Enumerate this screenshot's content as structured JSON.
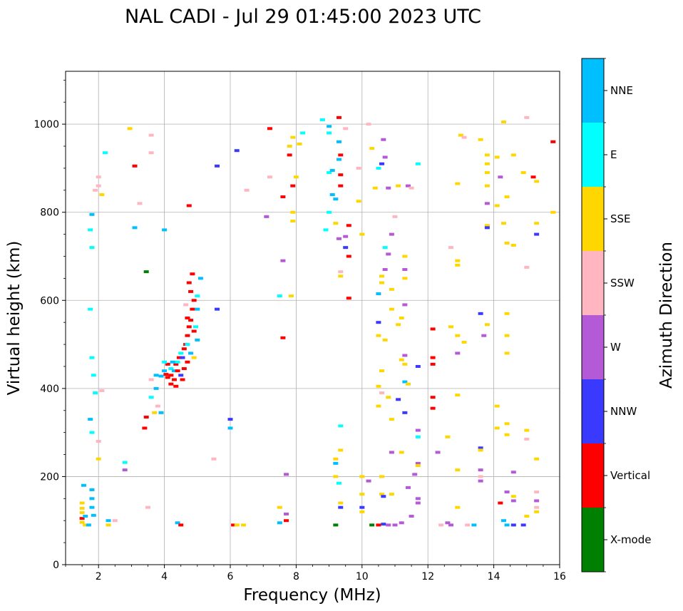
{
  "chart_data": {
    "type": "scatter",
    "title": "NAL CADI - Jul 29 01:45:00 2023 UTC",
    "xlabel": "Frequency (MHz)",
    "ylabel": "Virtual height (km)",
    "xlim": [
      1,
      16
    ],
    "ylim": [
      0,
      1120
    ],
    "xticks": [
      2,
      4,
      6,
      8,
      10,
      12,
      14,
      16
    ],
    "yticks": [
      0,
      200,
      400,
      600,
      800,
      1000
    ],
    "grid": true,
    "colorbar": {
      "label": "Azimuth Direction",
      "categories": [
        {
          "name": "X-mode",
          "color": "#008000"
        },
        {
          "name": "Vertical",
          "color": "#ff0000"
        },
        {
          "name": "NNW",
          "color": "#3a3aff"
        },
        {
          "name": "W",
          "color": "#b45ad6"
        },
        {
          "name": "SSW",
          "color": "#ffb6c1"
        },
        {
          "name": "SSE",
          "color": "#ffd700"
        },
        {
          "name": "E",
          "color": "#00ffff"
        },
        {
          "name": "NNE",
          "color": "#00bfff"
        }
      ]
    },
    "points": [
      [
        1.5,
        140,
        "SSE"
      ],
      [
        1.5,
        128,
        "SSE"
      ],
      [
        1.5,
        118,
        "SSE"
      ],
      [
        1.5,
        105,
        "Vertical"
      ],
      [
        1.5,
        96,
        "SSE"
      ],
      [
        1.55,
        180,
        "NNE"
      ],
      [
        1.6,
        110,
        "NNE"
      ],
      [
        1.8,
        170,
        "NNE"
      ],
      [
        1.8,
        150,
        "NNE"
      ],
      [
        1.8,
        130,
        "NNE"
      ],
      [
        1.85,
        112,
        "NNE"
      ],
      [
        1.6,
        90,
        "SSE"
      ],
      [
        1.7,
        90,
        "NNE"
      ],
      [
        1.75,
        580,
        "E"
      ],
      [
        1.8,
        720,
        "E"
      ],
      [
        1.75,
        760,
        "E"
      ],
      [
        1.8,
        795,
        "NNE"
      ],
      [
        1.9,
        850,
        "SSW"
      ],
      [
        2.0,
        880,
        "SSW"
      ],
      [
        2.0,
        860,
        "SSW"
      ],
      [
        2.1,
        840,
        "SSE"
      ],
      [
        2.2,
        935,
        "E"
      ],
      [
        1.8,
        470,
        "E"
      ],
      [
        1.85,
        430,
        "E"
      ],
      [
        1.9,
        390,
        "E"
      ],
      [
        1.75,
        330,
        "NNE"
      ],
      [
        1.8,
        300,
        "E"
      ],
      [
        2.0,
        280,
        "SSW"
      ],
      [
        2.0,
        240,
        "SSE"
      ],
      [
        2.1,
        395,
        "SSW"
      ],
      [
        2.3,
        100,
        "NNE"
      ],
      [
        2.3,
        90,
        "SSE"
      ],
      [
        2.5,
        100,
        "SSW"
      ],
      [
        2.8,
        215,
        "W"
      ],
      [
        2.8,
        232,
        "E"
      ],
      [
        2.95,
        990,
        "SSE"
      ],
      [
        3.1,
        905,
        "Vertical"
      ],
      [
        3.1,
        765,
        "NNE"
      ],
      [
        3.25,
        820,
        "SSW"
      ],
      [
        3.5,
        130,
        "SSW"
      ],
      [
        3.6,
        975,
        "SSW"
      ],
      [
        3.6,
        935,
        "SSW"
      ],
      [
        3.4,
        310,
        "Vertical"
      ],
      [
        3.45,
        335,
        "Vertical"
      ],
      [
        3.7,
        345,
        "SSE"
      ],
      [
        3.8,
        360,
        "SSW"
      ],
      [
        3.75,
        400,
        "NNE"
      ],
      [
        3.9,
        345,
        "NNE"
      ],
      [
        3.6,
        420,
        "SSW"
      ],
      [
        3.6,
        380,
        "E"
      ],
      [
        3.75,
        430,
        "NNE"
      ],
      [
        3.9,
        428,
        "NNE"
      ],
      [
        4.0,
        440,
        "NNE"
      ],
      [
        4.05,
        432,
        "Vertical"
      ],
      [
        4.1,
        425,
        "Vertical"
      ],
      [
        4.2,
        430,
        "Vertical"
      ],
      [
        4.2,
        445,
        "E"
      ],
      [
        4.3,
        440,
        "NNE"
      ],
      [
        4.35,
        455,
        "Vertical"
      ],
      [
        4.4,
        460,
        "E"
      ],
      [
        4.45,
        470,
        "Vertical"
      ],
      [
        4.5,
        480,
        "E"
      ],
      [
        4.55,
        470,
        "NNW"
      ],
      [
        4.6,
        490,
        "Vertical"
      ],
      [
        4.65,
        500,
        "Vertical"
      ],
      [
        4.7,
        520,
        "Vertical"
      ],
      [
        4.75,
        540,
        "Vertical"
      ],
      [
        4.8,
        555,
        "Vertical"
      ],
      [
        4.85,
        580,
        "Vertical"
      ],
      [
        4.9,
        600,
        "Vertical"
      ],
      [
        4.8,
        620,
        "Vertical"
      ],
      [
        4.75,
        640,
        "Vertical"
      ],
      [
        4.85,
        660,
        "Vertical"
      ],
      [
        5.0,
        610,
        "E"
      ],
      [
        5.0,
        580,
        "NNE"
      ],
      [
        4.95,
        540,
        "E"
      ],
      [
        5.0,
        510,
        "NNE"
      ],
      [
        4.3,
        420,
        "Vertical"
      ],
      [
        4.2,
        410,
        "Vertical"
      ],
      [
        4.35,
        405,
        "Vertical"
      ],
      [
        4.5,
        430,
        "NNW"
      ],
      [
        4.6,
        445,
        "Vertical"
      ],
      [
        4.55,
        420,
        "Vertical"
      ],
      [
        4.4,
        440,
        "Vertical"
      ],
      [
        4.25,
        460,
        "NNE"
      ],
      [
        4.1,
        455,
        "Vertical"
      ],
      [
        4.0,
        460,
        "E"
      ],
      [
        4.7,
        500,
        "E"
      ],
      [
        4.8,
        480,
        "NNE"
      ],
      [
        4.9,
        470,
        "SSE"
      ],
      [
        4.7,
        560,
        "Vertical"
      ],
      [
        4.65,
        590,
        "SSW"
      ],
      [
        4.9,
        530,
        "Vertical"
      ],
      [
        5.1,
        650,
        "NNE"
      ],
      [
        4.7,
        460,
        "Vertical"
      ],
      [
        4.75,
        815,
        "Vertical"
      ],
      [
        3.45,
        665,
        "X-mode"
      ],
      [
        4.0,
        760,
        "NNE"
      ],
      [
        4.4,
        95,
        "NNE"
      ],
      [
        4.5,
        90,
        "Vertical"
      ],
      [
        5.5,
        240,
        "SSW"
      ],
      [
        5.6,
        580,
        "NNW"
      ],
      [
        5.6,
        905,
        "NNW"
      ],
      [
        6.0,
        330,
        "NNW"
      ],
      [
        6.0,
        310,
        "NNE"
      ],
      [
        6.1,
        90,
        "Vertical"
      ],
      [
        6.2,
        90,
        "SSE"
      ],
      [
        6.4,
        90,
        "SSE"
      ],
      [
        6.2,
        940,
        "NNW"
      ],
      [
        6.5,
        850,
        "SSW"
      ],
      [
        7.1,
        790,
        "W"
      ],
      [
        7.2,
        880,
        "SSW"
      ],
      [
        7.2,
        990,
        "Vertical"
      ],
      [
        7.5,
        130,
        "SSE"
      ],
      [
        7.5,
        95,
        "NNE"
      ],
      [
        7.6,
        690,
        "W"
      ],
      [
        7.6,
        835,
        "Vertical"
      ],
      [
        7.7,
        115,
        "W"
      ],
      [
        7.7,
        100,
        "Vertical"
      ],
      [
        7.7,
        205,
        "W"
      ],
      [
        7.5,
        610,
        "E"
      ],
      [
        7.6,
        515,
        "Vertical"
      ],
      [
        7.8,
        930,
        "Vertical"
      ],
      [
        7.8,
        950,
        "SSE"
      ],
      [
        7.9,
        970,
        "SSE"
      ],
      [
        8.0,
        880,
        "SSE"
      ],
      [
        8.1,
        955,
        "SSE"
      ],
      [
        8.2,
        980,
        "E"
      ],
      [
        7.9,
        800,
        "SSE"
      ],
      [
        7.9,
        780,
        "SSE"
      ],
      [
        7.85,
        610,
        "SSE"
      ],
      [
        7.9,
        860,
        "Vertical"
      ],
      [
        8.9,
        760,
        "E"
      ],
      [
        9.0,
        800,
        "E"
      ],
      [
        9.0,
        890,
        "E"
      ],
      [
        9.1,
        895,
        "NNE"
      ],
      [
        9.1,
        840,
        "NNE"
      ],
      [
        9.2,
        830,
        "NNE"
      ],
      [
        9.3,
        920,
        "NNE"
      ],
      [
        9.35,
        930,
        "Vertical"
      ],
      [
        9.35,
        885,
        "Vertical"
      ],
      [
        9.35,
        860,
        "Vertical"
      ],
      [
        9.3,
        960,
        "NNE"
      ],
      [
        9.5,
        990,
        "SSW"
      ],
      [
        9.3,
        1015,
        "Vertical"
      ],
      [
        9.0,
        995,
        "NNE"
      ],
      [
        9.0,
        980,
        "E"
      ],
      [
        8.8,
        1010,
        "E"
      ],
      [
        9.2,
        775,
        "SSE"
      ],
      [
        9.3,
        740,
        "W"
      ],
      [
        9.35,
        665,
        "SSW"
      ],
      [
        9.35,
        655,
        "SSE"
      ],
      [
        9.6,
        770,
        "Vertical"
      ],
      [
        9.6,
        700,
        "Vertical"
      ],
      [
        9.6,
        605,
        "Vertical"
      ],
      [
        9.5,
        745,
        "W"
      ],
      [
        9.5,
        720,
        "NNW"
      ],
      [
        9.2,
        240,
        "SSE"
      ],
      [
        9.2,
        230,
        "NNE"
      ],
      [
        9.2,
        200,
        "SSE"
      ],
      [
        9.3,
        185,
        "E"
      ],
      [
        9.35,
        140,
        "SSE"
      ],
      [
        9.35,
        130,
        "NNW"
      ],
      [
        9.35,
        260,
        "SSE"
      ],
      [
        9.35,
        315,
        "E"
      ],
      [
        9.2,
        90,
        "X-mode"
      ],
      [
        9.9,
        900,
        "SSW"
      ],
      [
        9.9,
        825,
        "SSE"
      ],
      [
        10.0,
        750,
        "SSE"
      ],
      [
        10.2,
        1000,
        "SSW"
      ],
      [
        10.3,
        945,
        "SSE"
      ],
      [
        10.4,
        855,
        "SSE"
      ],
      [
        10.5,
        900,
        "E"
      ],
      [
        10.6,
        910,
        "NNW"
      ],
      [
        10.65,
        965,
        "W"
      ],
      [
        10.7,
        925,
        "W"
      ],
      [
        10.8,
        855,
        "W"
      ],
      [
        10.9,
        750,
        "W"
      ],
      [
        10.7,
        720,
        "E"
      ],
      [
        10.8,
        705,
        "W"
      ],
      [
        10.7,
        670,
        "W"
      ],
      [
        10.6,
        655,
        "SSE"
      ],
      [
        10.6,
        640,
        "SSE"
      ],
      [
        10.5,
        615,
        "NNE"
      ],
      [
        10.9,
        625,
        "SSE"
      ],
      [
        10.9,
        580,
        "SSE"
      ],
      [
        10.5,
        550,
        "NNW"
      ],
      [
        10.5,
        520,
        "SSE"
      ],
      [
        10.7,
        510,
        "SSE"
      ],
      [
        10.6,
        440,
        "SSE"
      ],
      [
        10.5,
        405,
        "SSE"
      ],
      [
        10.6,
        390,
        "SSW"
      ],
      [
        10.8,
        380,
        "SSE"
      ],
      [
        11.1,
        375,
        "NNW"
      ],
      [
        10.5,
        360,
        "SSE"
      ],
      [
        10.9,
        330,
        "SSE"
      ],
      [
        10.9,
        255,
        "W"
      ],
      [
        11.2,
        255,
        "SSE"
      ],
      [
        11.2,
        465,
        "SSE"
      ],
      [
        11.3,
        475,
        "W"
      ],
      [
        11.3,
        455,
        "SSE"
      ],
      [
        11.3,
        415,
        "NNE"
      ],
      [
        11.4,
        410,
        "SSE"
      ],
      [
        11.3,
        345,
        "NNW"
      ],
      [
        11.3,
        700,
        "SSE"
      ],
      [
        11.3,
        670,
        "W"
      ],
      [
        11.3,
        650,
        "SSE"
      ],
      [
        11.3,
        590,
        "W"
      ],
      [
        11.2,
        560,
        "SSE"
      ],
      [
        11.1,
        545,
        "SSE"
      ],
      [
        11.4,
        860,
        "W"
      ],
      [
        11.5,
        855,
        "SSW"
      ],
      [
        11.1,
        860,
        "SSE"
      ],
      [
        11.0,
        790,
        "SSW"
      ],
      [
        11.7,
        910,
        "E"
      ],
      [
        11.7,
        450,
        "NNW"
      ],
      [
        11.7,
        305,
        "W"
      ],
      [
        11.7,
        290,
        "E"
      ],
      [
        11.7,
        230,
        "W"
      ],
      [
        11.7,
        225,
        "SSE"
      ],
      [
        11.6,
        205,
        "W"
      ],
      [
        11.4,
        175,
        "W"
      ],
      [
        11.5,
        110,
        "W"
      ],
      [
        11.7,
        150,
        "W"
      ],
      [
        11.7,
        140,
        "W"
      ],
      [
        10.0,
        200,
        "SSE"
      ],
      [
        10.0,
        160,
        "SSE"
      ],
      [
        10.2,
        190,
        "W"
      ],
      [
        10.6,
        200,
        "SSE"
      ],
      [
        10.6,
        160,
        "SSE"
      ],
      [
        10.65,
        155,
        "NNW"
      ],
      [
        10.9,
        160,
        "SSE"
      ],
      [
        10.3,
        90,
        "X-mode"
      ],
      [
        10.5,
        90,
        "Vertical"
      ],
      [
        10.65,
        92,
        "NNW"
      ],
      [
        10.8,
        90,
        "W"
      ],
      [
        11.0,
        90,
        "W"
      ],
      [
        11.2,
        95,
        "W"
      ],
      [
        10.0,
        130,
        "NNW"
      ],
      [
        10.0,
        120,
        "SSE"
      ],
      [
        12.15,
        535,
        "Vertical"
      ],
      [
        12.15,
        470,
        "Vertical"
      ],
      [
        12.15,
        455,
        "Vertical"
      ],
      [
        12.15,
        380,
        "Vertical"
      ],
      [
        12.15,
        355,
        "Vertical"
      ],
      [
        12.3,
        255,
        "W"
      ],
      [
        12.6,
        290,
        "SSE"
      ],
      [
        12.7,
        720,
        "SSW"
      ],
      [
        12.9,
        690,
        "SSE"
      ],
      [
        12.9,
        680,
        "SSE"
      ],
      [
        12.7,
        540,
        "SSE"
      ],
      [
        12.9,
        520,
        "SSE"
      ],
      [
        13.1,
        505,
        "SSE"
      ],
      [
        12.9,
        480,
        "W"
      ],
      [
        12.9,
        385,
        "SSE"
      ],
      [
        12.9,
        215,
        "SSE"
      ],
      [
        12.9,
        130,
        "SSE"
      ],
      [
        12.6,
        95,
        "W"
      ],
      [
        12.4,
        90,
        "SSW"
      ],
      [
        12.7,
        90,
        "W"
      ],
      [
        13.2,
        90,
        "SSW"
      ],
      [
        13.4,
        90,
        "NNE"
      ],
      [
        13.0,
        975,
        "SSE"
      ],
      [
        13.1,
        970,
        "SSW"
      ],
      [
        12.9,
        865,
        "SSE"
      ],
      [
        13.6,
        965,
        "SSE"
      ],
      [
        13.8,
        930,
        "SSE"
      ],
      [
        13.8,
        910,
        "SSE"
      ],
      [
        13.8,
        890,
        "SSE"
      ],
      [
        13.8,
        860,
        "SSE"
      ],
      [
        13.8,
        820,
        "W"
      ],
      [
        13.8,
        770,
        "SSE"
      ],
      [
        13.8,
        765,
        "NNW"
      ],
      [
        13.6,
        570,
        "NNW"
      ],
      [
        13.8,
        545,
        "SSE"
      ],
      [
        13.7,
        520,
        "W"
      ],
      [
        13.6,
        265,
        "NNW"
      ],
      [
        13.6,
        260,
        "SSE"
      ],
      [
        13.6,
        215,
        "W"
      ],
      [
        13.6,
        200,
        "SSW"
      ],
      [
        13.6,
        190,
        "W"
      ],
      [
        14.1,
        360,
        "SSE"
      ],
      [
        14.1,
        310,
        "SSE"
      ],
      [
        14.2,
        140,
        "Vertical"
      ],
      [
        14.3,
        100,
        "NNE"
      ],
      [
        14.4,
        90,
        "NNE"
      ],
      [
        14.6,
        90,
        "NNW"
      ],
      [
        14.9,
        90,
        "NNW"
      ],
      [
        14.3,
        1005,
        "SSE"
      ],
      [
        14.1,
        925,
        "SSE"
      ],
      [
        14.2,
        880,
        "W"
      ],
      [
        14.6,
        930,
        "SSE"
      ],
      [
        14.4,
        835,
        "SSE"
      ],
      [
        14.1,
        815,
        "SSE"
      ],
      [
        14.3,
        775,
        "SSE"
      ],
      [
        14.4,
        730,
        "SSE"
      ],
      [
        14.6,
        725,
        "SSE"
      ],
      [
        14.4,
        570,
        "SSE"
      ],
      [
        14.4,
        520,
        "SSE"
      ],
      [
        14.4,
        480,
        "SSE"
      ],
      [
        14.4,
        320,
        "SSE"
      ],
      [
        14.4,
        295,
        "SSE"
      ],
      [
        14.4,
        165,
        "W"
      ],
      [
        14.6,
        155,
        "SSE"
      ],
      [
        14.6,
        145,
        "W"
      ],
      [
        14.6,
        210,
        "W"
      ],
      [
        14.9,
        890,
        "SSE"
      ],
      [
        15.0,
        1015,
        "SSW"
      ],
      [
        15.2,
        880,
        "Vertical"
      ],
      [
        15.3,
        870,
        "SSE"
      ],
      [
        15.0,
        675,
        "SSW"
      ],
      [
        15.3,
        775,
        "SSE"
      ],
      [
        15.3,
        750,
        "NNW"
      ],
      [
        15.0,
        305,
        "SSE"
      ],
      [
        15.0,
        285,
        "SSW"
      ],
      [
        15.3,
        240,
        "SSE"
      ],
      [
        15.3,
        165,
        "SSW"
      ],
      [
        15.3,
        145,
        "W"
      ],
      [
        15.3,
        130,
        "SSW"
      ],
      [
        15.3,
        120,
        "SSE"
      ],
      [
        15.0,
        110,
        "SSE"
      ],
      [
        15.8,
        960,
        "Vertical"
      ],
      [
        15.8,
        800,
        "SSE"
      ]
    ]
  }
}
